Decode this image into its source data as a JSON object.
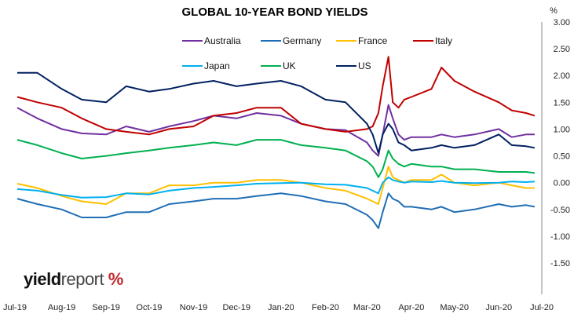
{
  "logo": {
    "part1": "yield",
    "part2": "report",
    "part3": "%"
  },
  "chart_data": {
    "type": "line",
    "title": "GLOBAL 10-YEAR BOND YIELDS",
    "ylabel": "%",
    "ylim": [
      -1.5,
      3.0
    ],
    "yticks": [
      "3.00",
      "2.50",
      "2.00",
      "1.50",
      "1.00",
      "0.50",
      "0.00",
      "-0.50",
      "-1.00",
      "-1.50"
    ],
    "grid": false,
    "legend_position": "top",
    "x_tick_labels": [
      "Jul-19",
      "Aug-19",
      "Sep-19",
      "Oct-19",
      "Nov-19",
      "Dec-19",
      "Jan-20",
      "Feb-20",
      "Mar-20",
      "Apr-20",
      "May-20",
      "Jun-20",
      "Jul-20"
    ],
    "x": [
      "2019-07-01",
      "2019-07-15",
      "2019-08-01",
      "2019-08-15",
      "2019-09-01",
      "2019-09-15",
      "2019-10-01",
      "2019-10-15",
      "2019-11-01",
      "2019-11-15",
      "2019-12-01",
      "2019-12-15",
      "2020-01-01",
      "2020-01-15",
      "2020-02-01",
      "2020-02-15",
      "2020-03-01",
      "2020-03-05",
      "2020-03-09",
      "2020-03-12",
      "2020-03-16",
      "2020-03-19",
      "2020-03-23",
      "2020-03-27",
      "2020-04-01",
      "2020-04-15",
      "2020-04-22",
      "2020-05-01",
      "2020-05-15",
      "2020-06-01",
      "2020-06-10",
      "2020-06-20",
      "2020-06-26"
    ],
    "series": [
      {
        "name": "Australia",
        "color": "#7030a0",
        "values": [
          1.4,
          1.2,
          1.0,
          0.92,
          0.9,
          1.05,
          0.95,
          1.05,
          1.15,
          1.25,
          1.2,
          1.3,
          1.25,
          1.1,
          1.0,
          0.98,
          0.75,
          0.6,
          0.5,
          0.9,
          1.45,
          1.2,
          0.9,
          0.8,
          0.85,
          0.85,
          0.9,
          0.85,
          0.9,
          1.0,
          0.85,
          0.9,
          0.9
        ]
      },
      {
        "name": "Germany",
        "color": "#1f6eb5",
        "values": [
          -0.3,
          -0.4,
          -0.5,
          -0.65,
          -0.65,
          -0.55,
          -0.55,
          -0.4,
          -0.35,
          -0.3,
          -0.3,
          -0.25,
          -0.2,
          -0.25,
          -0.35,
          -0.4,
          -0.6,
          -0.7,
          -0.85,
          -0.55,
          -0.2,
          -0.3,
          -0.35,
          -0.45,
          -0.45,
          -0.5,
          -0.45,
          -0.55,
          -0.5,
          -0.4,
          -0.45,
          -0.42,
          -0.45
        ]
      },
      {
        "name": "France",
        "color": "#ffc000",
        "values": [
          -0.02,
          -0.1,
          -0.25,
          -0.35,
          -0.4,
          -0.2,
          -0.2,
          -0.05,
          -0.05,
          0.0,
          0.0,
          0.05,
          0.05,
          0.0,
          -0.1,
          -0.15,
          -0.3,
          -0.35,
          -0.4,
          -0.1,
          0.3,
          0.1,
          0.05,
          0.0,
          0.05,
          0.05,
          0.15,
          0.0,
          -0.05,
          0.0,
          -0.05,
          -0.1,
          -0.1
        ]
      },
      {
        "name": "Italy",
        "color": "#c00000",
        "values": [
          1.6,
          1.5,
          1.4,
          1.2,
          1.0,
          0.95,
          0.9,
          1.0,
          1.05,
          1.25,
          1.3,
          1.4,
          1.4,
          1.1,
          1.0,
          0.95,
          1.0,
          1.05,
          1.3,
          1.8,
          2.35,
          1.5,
          1.4,
          1.55,
          1.6,
          1.75,
          2.15,
          1.9,
          1.7,
          1.5,
          1.35,
          1.3,
          1.25
        ]
      },
      {
        "name": "Japan",
        "color": "#00b0f0",
        "values": [
          -0.12,
          -0.15,
          -0.23,
          -0.28,
          -0.27,
          -0.2,
          -0.22,
          -0.15,
          -0.1,
          -0.08,
          -0.05,
          -0.02,
          -0.01,
          0.0,
          -0.03,
          -0.04,
          -0.1,
          -0.15,
          -0.2,
          0.0,
          0.1,
          0.05,
          0.02,
          0.0,
          0.02,
          0.01,
          0.03,
          0.0,
          -0.01,
          0.0,
          0.02,
          0.01,
          0.02
        ]
      },
      {
        "name": "UK",
        "color": "#00b050",
        "values": [
          0.8,
          0.7,
          0.55,
          0.45,
          0.5,
          0.55,
          0.6,
          0.65,
          0.7,
          0.75,
          0.7,
          0.8,
          0.8,
          0.7,
          0.65,
          0.6,
          0.4,
          0.3,
          0.1,
          0.25,
          0.6,
          0.45,
          0.35,
          0.3,
          0.35,
          0.3,
          0.3,
          0.25,
          0.25,
          0.2,
          0.2,
          0.2,
          0.18
        ]
      },
      {
        "name": "US",
        "color": "#002060",
        "values": [
          2.05,
          2.05,
          1.75,
          1.55,
          1.5,
          1.8,
          1.7,
          1.75,
          1.85,
          1.9,
          1.8,
          1.85,
          1.9,
          1.8,
          1.55,
          1.5,
          1.1,
          0.9,
          0.55,
          0.9,
          1.1,
          1.0,
          0.75,
          0.7,
          0.6,
          0.65,
          0.7,
          0.65,
          0.7,
          0.9,
          0.7,
          0.68,
          0.65
        ]
      }
    ]
  }
}
